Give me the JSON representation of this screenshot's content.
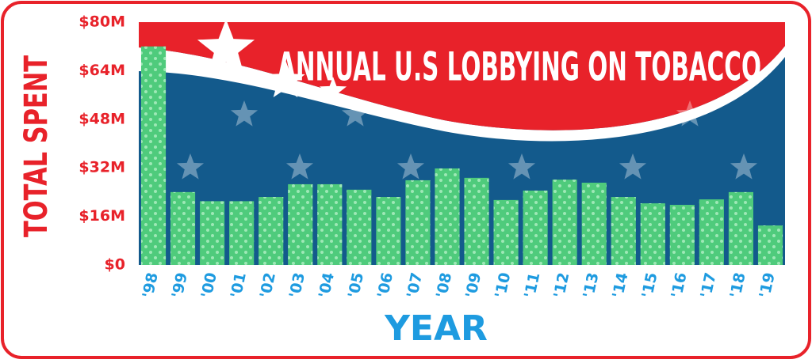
{
  "chart_data": {
    "type": "bar",
    "title": "ANNUAL U.S LOBBYING ON TOBACCO",
    "y_label": "TOTAL SPENT",
    "x_label": "YEAR",
    "categories": [
      "'98",
      "'99",
      "'00",
      "'01",
      "'02",
      "'03",
      "'04",
      "'05",
      "'06",
      "'07",
      "'08",
      "'09",
      "'10",
      "'11",
      "'12",
      "'13",
      "'14",
      "'15",
      "'16",
      "'17",
      "'18",
      "'19"
    ],
    "values": [
      72,
      24,
      21,
      21,
      22.4,
      26.6,
      26.6,
      24.8,
      22.4,
      27.9,
      31.8,
      28.7,
      21.4,
      24.5,
      28.1,
      27.1,
      22.4,
      20.3,
      19.8,
      21.6,
      24,
      13
    ],
    "color": "#4fcb7c",
    "ylim": [
      0,
      80
    ],
    "yticks": [
      {
        "value": 0,
        "label": "$0"
      },
      {
        "value": 16,
        "label": "$16M"
      },
      {
        "value": 32,
        "label": "$32M"
      },
      {
        "value": 48,
        "label": "$48M"
      },
      {
        "value": 64,
        "label": "$64M"
      },
      {
        "value": 80,
        "label": "$80M"
      }
    ]
  }
}
